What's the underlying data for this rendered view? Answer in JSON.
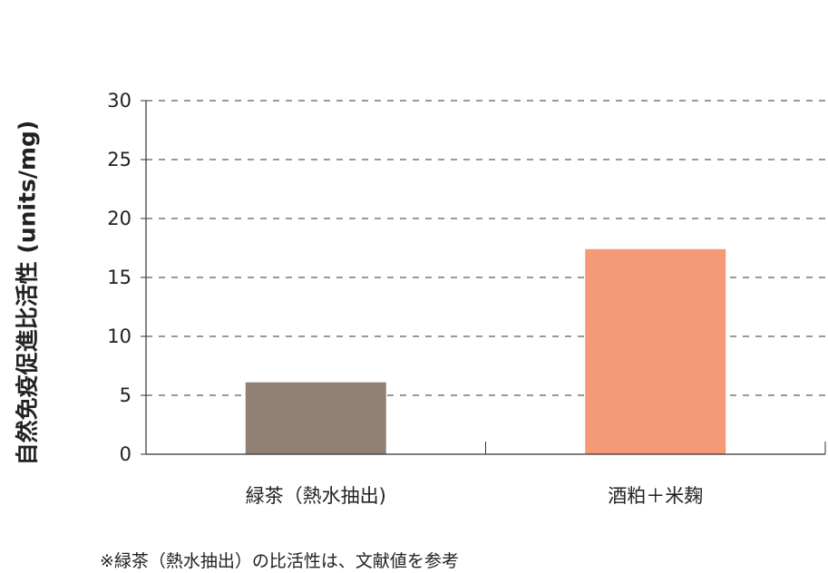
{
  "chart_data": {
    "type": "bar",
    "ylabel": "自然免疫促進比活性 (units/mg)",
    "xlabel": "",
    "categories": [
      "緑茶（熱水抽出)",
      "酒粕＋米麹"
    ],
    "values": [
      6.1,
      17.4
    ],
    "ylim": [
      0,
      30
    ],
    "yticks": [
      0,
      5,
      10,
      15,
      20,
      25,
      30
    ],
    "grid": true,
    "colors": [
      "#928173",
      "#f39a78"
    ]
  },
  "footnote": "※緑茶（熱水抽出）の比活性は、文献値を参考"
}
